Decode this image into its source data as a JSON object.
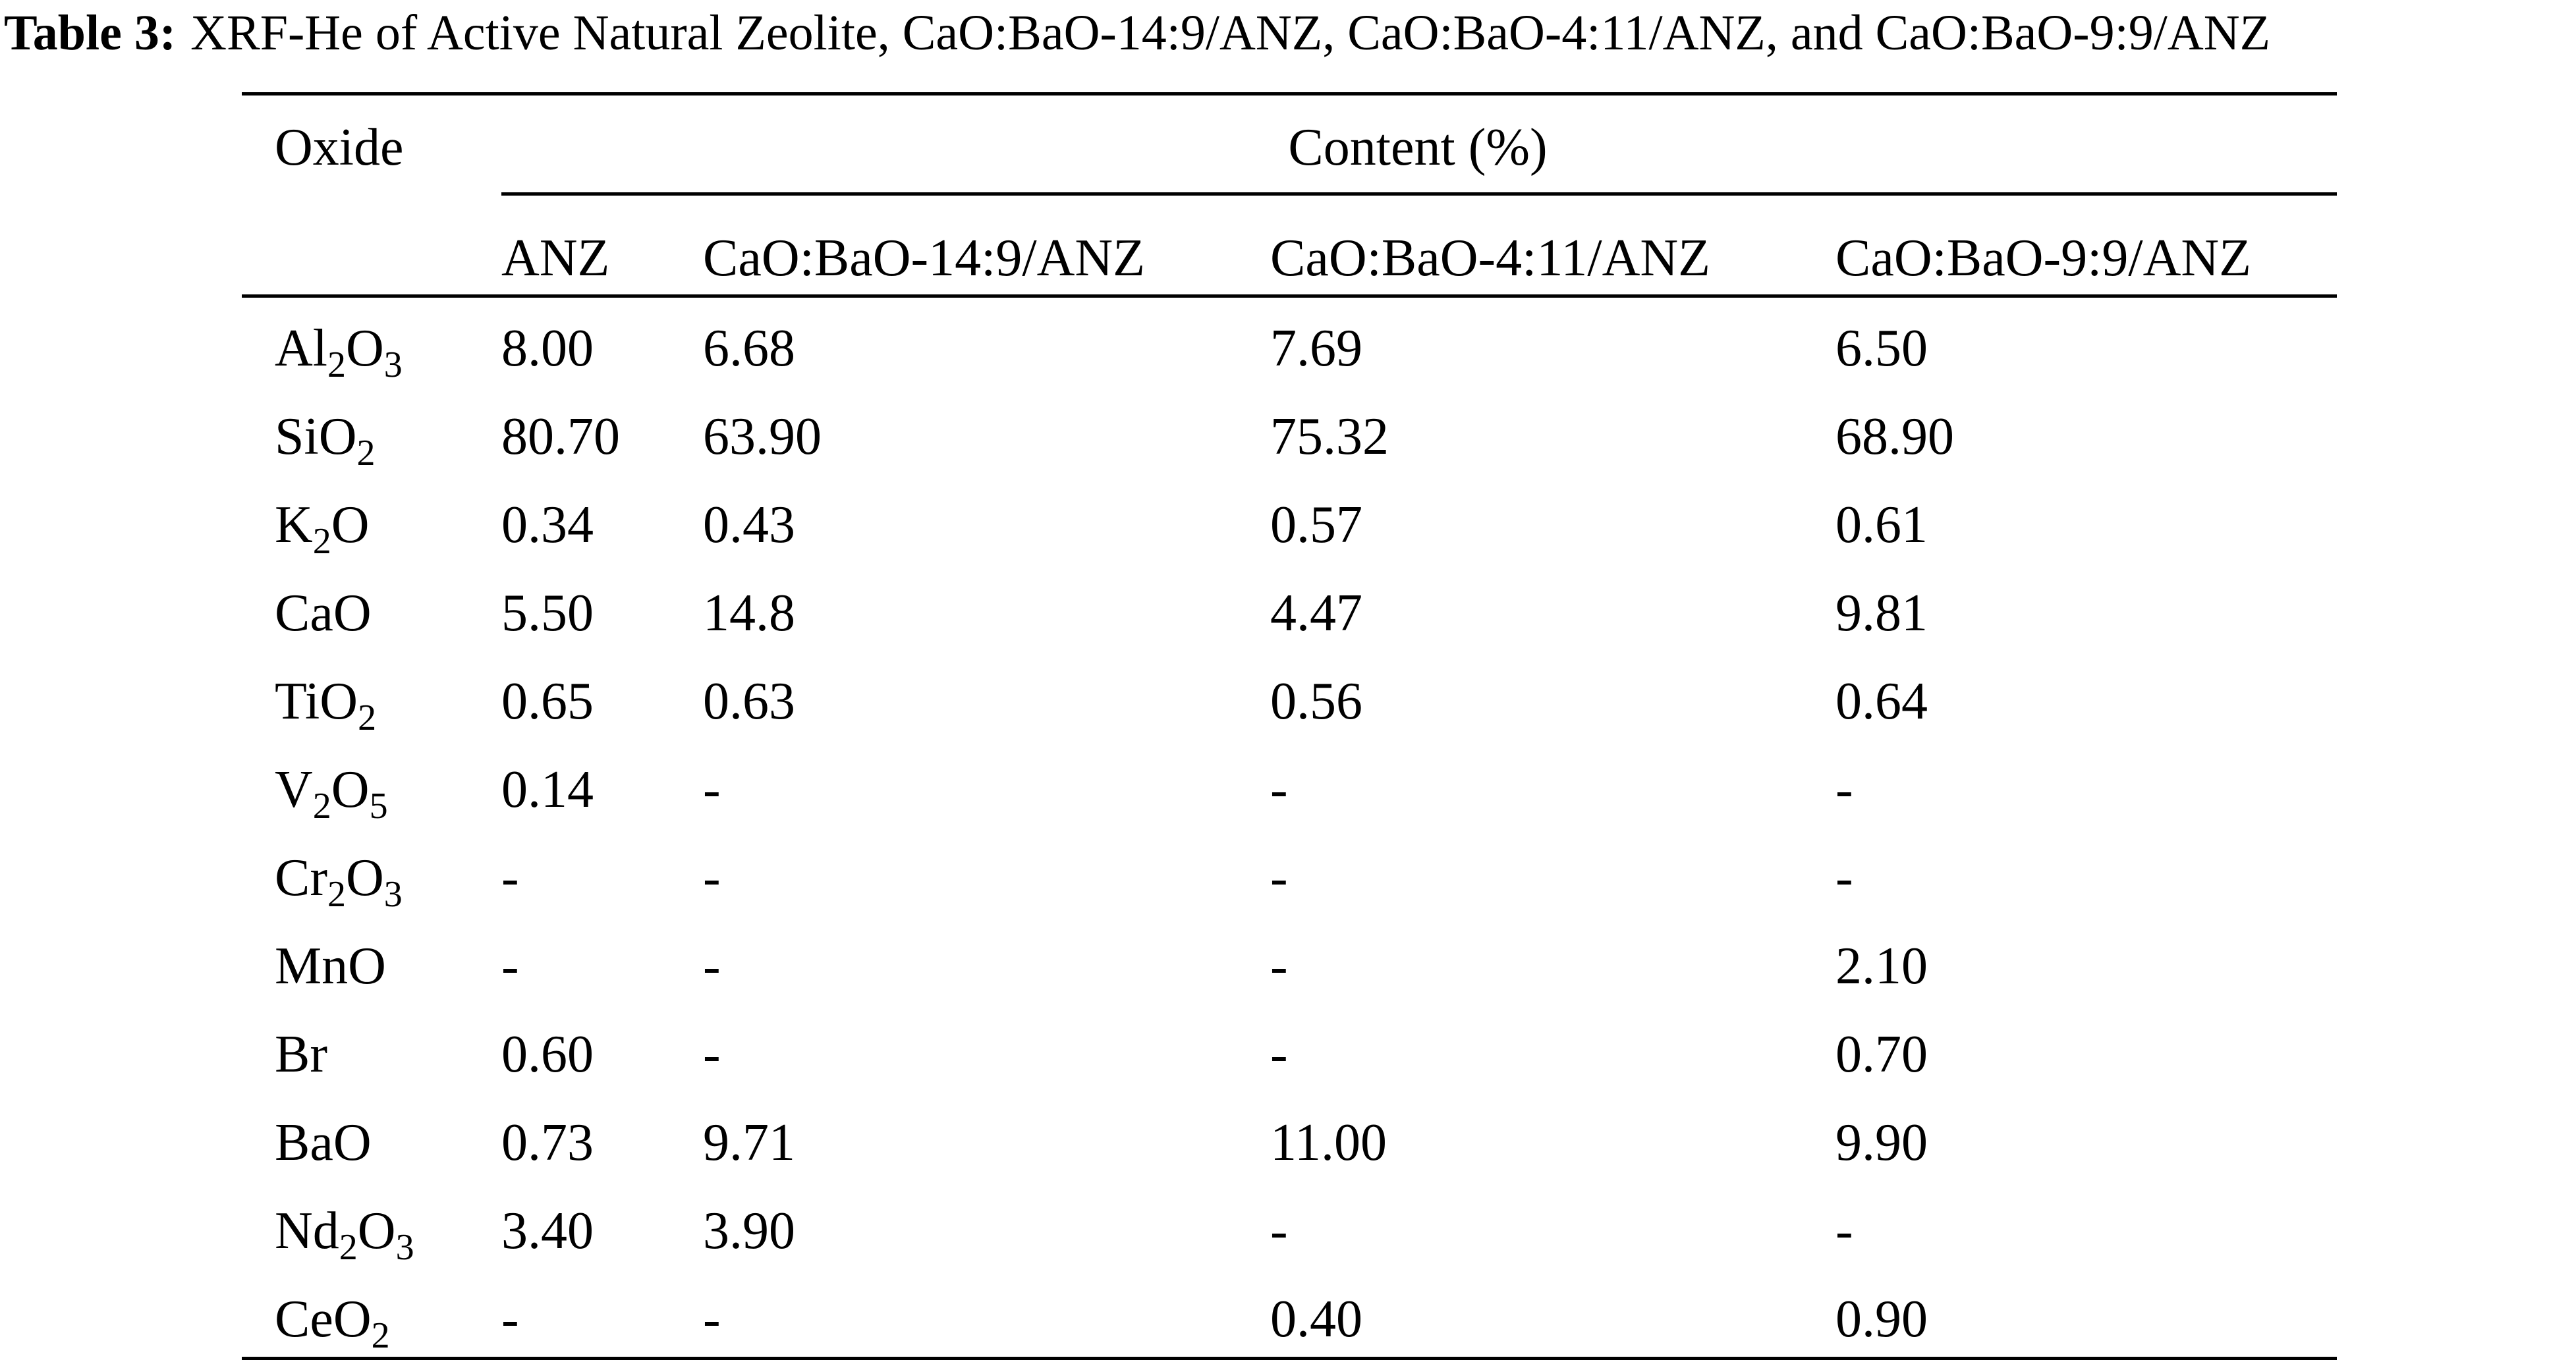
{
  "title": {
    "label": "Table 3:",
    "text": "XRF-He of Active Natural Zeolite, CaO:BaO-14:9/ANZ, CaO:BaO-4:11/ANZ, and CaO:BaO-9:9/ANZ"
  },
  "table": {
    "header": {
      "first": "Oxide",
      "group": "Content (%)",
      "columns": [
        "ANZ",
        "CaO:BaO-14:9/ANZ",
        "CaO:BaO-4:11/ANZ",
        "CaO:BaO-9:9/ANZ"
      ]
    },
    "rows": [
      [
        "Al2O3",
        "8.00",
        "6.68",
        "7.69",
        "6.50"
      ],
      [
        "SiO2",
        "80.70",
        "63.90",
        "75.32",
        "68.90"
      ],
      [
        "K2O",
        "0.34",
        "0.43",
        "0.57",
        "0.61"
      ],
      [
        "CaO",
        "5.50",
        "14.8",
        "4.47",
        "9.81"
      ],
      [
        "TiO2",
        "0.65",
        "0.63",
        "0.56",
        "0.64"
      ],
      [
        "V2O5",
        "0.14",
        "-",
        "-",
        "-"
      ],
      [
        "Cr2O3",
        "-",
        "-",
        "-",
        "-"
      ],
      [
        "MnO",
        "-",
        "-",
        "-",
        "2.10"
      ],
      [
        "Br",
        "0.60",
        "-",
        "-",
        "0.70"
      ],
      [
        "BaO",
        "0.73",
        "9.71",
        "11.00",
        "9.90"
      ],
      [
        "Nd2O3",
        "3.40",
        "3.90",
        "-",
        "-"
      ],
      [
        "CeO2",
        "-",
        "-",
        "0.40",
        "0.90"
      ]
    ]
  }
}
